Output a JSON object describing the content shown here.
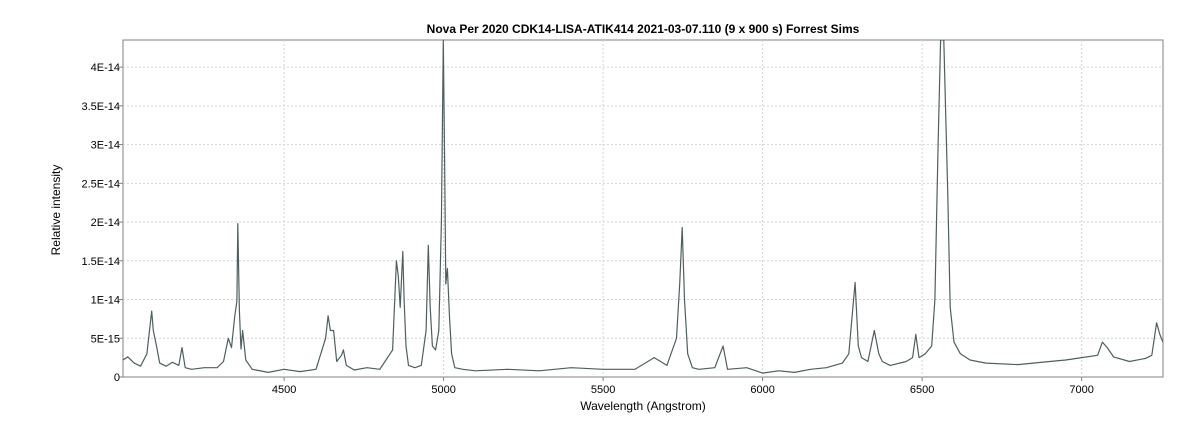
{
  "chart_data": {
    "type": "line",
    "title": "Nova Per 2020  CDK14-LISA-ATIK414  2021-03-07.110  (9 x 900 s)  Forrest Sims",
    "xlabel": "Wavelength (Angstrom)",
    "ylabel": "Relative intensity",
    "xlim": [
      3995,
      7255
    ],
    "ylim": [
      0,
      4.35e-14
    ],
    "x_ticks": [
      4500,
      5000,
      5500,
      6000,
      6500,
      7000
    ],
    "x_tick_labels": [
      "4500",
      "5000",
      "5500",
      "6000",
      "6500",
      "7000"
    ],
    "y_ticks": [
      0,
      5e-15,
      1e-14,
      1.5e-14,
      2e-14,
      2.5e-14,
      3e-14,
      3.5e-14,
      4e-14
    ],
    "y_tick_labels": [
      "0",
      "5E-15",
      "1E-14",
      "1.5E-14",
      "2E-14",
      "2.5E-14",
      "3E-14",
      "3.5E-14",
      "4E-14"
    ],
    "grid": true,
    "line_color": "#4f5f5f",
    "series": [
      {
        "x": [
          3995,
          4010,
          4030,
          4050,
          4070,
          4085,
          4090,
          4100,
          4110,
          4130,
          4150,
          4170,
          4180,
          4190,
          4210,
          4250,
          4290,
          4310,
          4325,
          4335,
          4345,
          4352,
          4355,
          4360,
          4365,
          4370,
          4380,
          4400,
          4450,
          4500,
          4550,
          4600,
          4630,
          4638,
          4645,
          4655,
          4665,
          4680,
          4686,
          4695,
          4720,
          4760,
          4800,
          4840,
          4852,
          4858,
          4864,
          4872,
          4876,
          4882,
          4890,
          4910,
          4930,
          4945,
          4952,
          4958,
          4965,
          4975,
          4985,
          4993,
          4999,
          5003,
          5007,
          5012,
          5018,
          5025,
          5035,
          5060,
          5100,
          5200,
          5300,
          5400,
          5500,
          5600,
          5660,
          5700,
          5730,
          5740,
          5748,
          5755,
          5765,
          5780,
          5800,
          5850,
          5876,
          5890,
          5950,
          6000,
          6050,
          6100,
          6150,
          6200,
          6250,
          6270,
          6290,
          6300,
          6310,
          6330,
          6350,
          6364,
          6375,
          6400,
          6450,
          6470,
          6480,
          6490,
          6510,
          6530,
          6540,
          6550,
          6558,
          6563,
          6568,
          6580,
          6588,
          6600,
          6620,
          6650,
          6700,
          6800,
          6900,
          6950,
          7000,
          7050,
          7065,
          7080,
          7100,
          7150,
          7200,
          7220,
          7235,
          7245,
          7255
        ],
        "y": [
          2.2e-15,
          2.6e-15,
          1.8e-15,
          1.4e-15,
          3e-15,
          8.5e-15,
          6e-15,
          4e-15,
          1.8e-15,
          1.4e-15,
          1.9e-15,
          1.5e-15,
          3.8e-15,
          1.2e-15,
          1e-15,
          1.2e-15,
          1.2e-15,
          2e-15,
          5e-15,
          3.8e-15,
          7.8e-15,
          9.8e-15,
          1.98e-14,
          8.5e-15,
          3.6e-15,
          6e-15,
          2.2e-15,
          1e-15,
          6e-16,
          1e-15,
          7e-16,
          1e-15,
          5e-15,
          7.9e-15,
          6e-15,
          6e-15,
          2e-15,
          2.8e-15,
          3.5e-15,
          1.5e-15,
          9e-16,
          1.2e-15,
          1e-15,
          3.5e-15,
          1.5e-14,
          1.3e-14,
          9e-15,
          1.62e-14,
          1e-14,
          4e-15,
          1.5e-15,
          1.2e-15,
          1.5e-15,
          6e-15,
          1.7e-14,
          9e-15,
          4e-15,
          3.5e-15,
          6e-15,
          2e-14,
          4.4e-14,
          2.8e-14,
          1.2e-14,
          1.4e-14,
          8e-15,
          3e-15,
          1.2e-15,
          1e-15,
          8e-16,
          1e-15,
          8e-16,
          1.2e-15,
          1e-15,
          1e-15,
          2.5e-15,
          1.5e-15,
          5e-15,
          1.2e-14,
          1.93e-14,
          1e-14,
          3e-15,
          1.2e-15,
          1e-15,
          1.2e-15,
          4e-15,
          1e-15,
          1.2e-15,
          5e-16,
          8e-16,
          6e-16,
          1e-15,
          1.2e-15,
          1.8e-15,
          3e-15,
          1.22e-14,
          4e-15,
          2.5e-15,
          2e-15,
          6e-15,
          3e-15,
          2e-15,
          1.5e-15,
          2e-15,
          2.5e-15,
          5.5e-15,
          2.5e-15,
          3e-15,
          4e-15,
          1e-14,
          3e-14,
          4.4e-14,
          4.4e-14,
          4.4e-14,
          2.4e-14,
          9e-15,
          4.5e-15,
          3e-15,
          2.2e-15,
          1.8e-15,
          1.6e-15,
          2e-15,
          2.2e-15,
          2.5e-15,
          2.8e-15,
          4.5e-15,
          3.8e-15,
          2.6e-15,
          2e-15,
          2.4e-15,
          2.8e-15,
          7e-15,
          5.5e-15,
          4.5e-15
        ]
      }
    ]
  }
}
